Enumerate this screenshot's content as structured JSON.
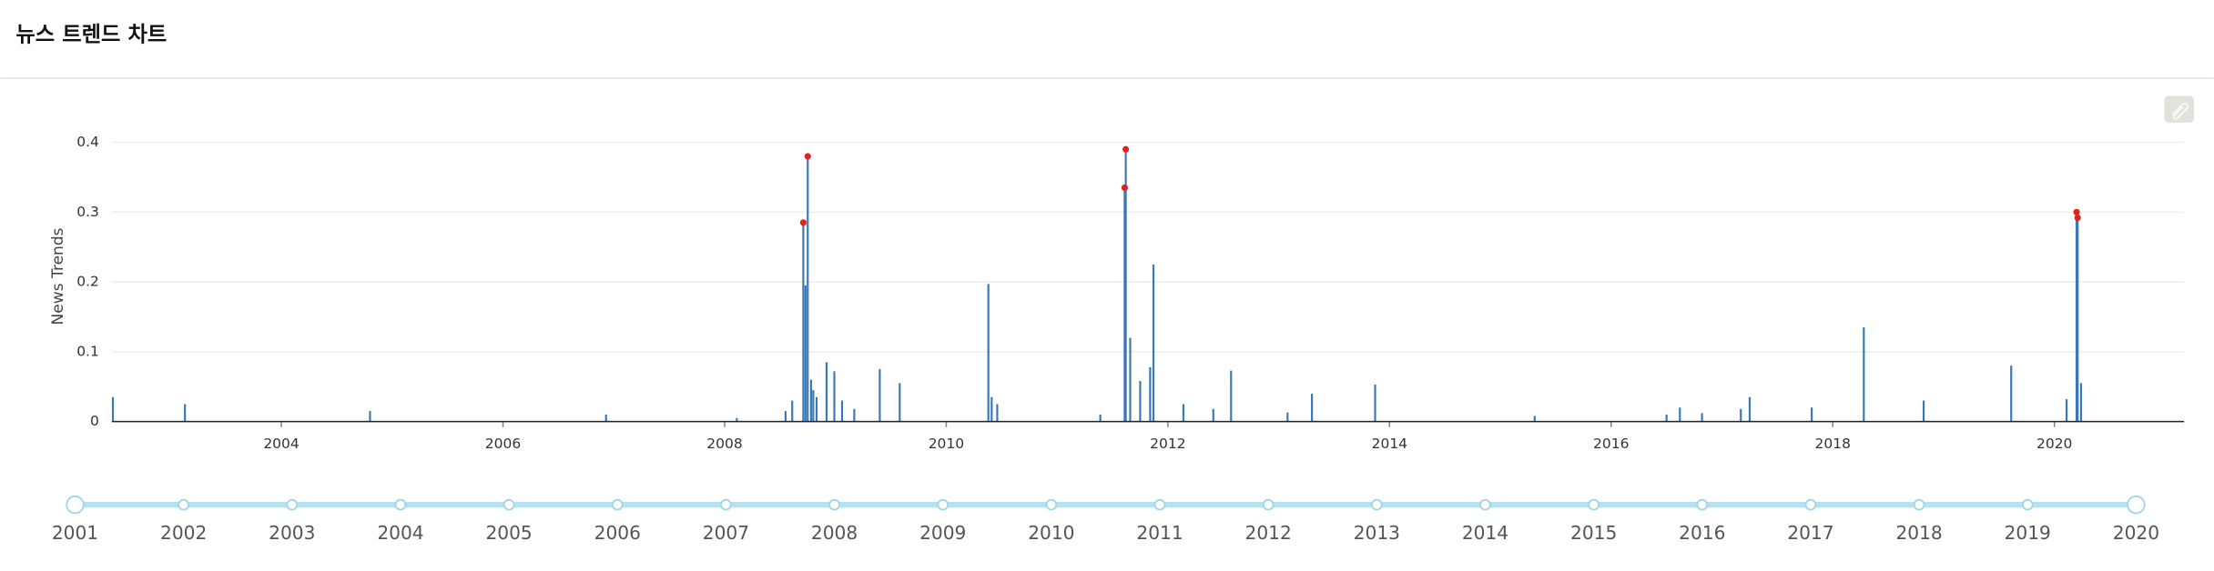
{
  "header": {
    "title": "뉴스 트렌드 차트"
  },
  "chart_data": {
    "type": "bar",
    "y_label": "News Trends",
    "color": "#3a78b5",
    "x": [
      2002.48,
      2003.13,
      2004.8,
      2006.93,
      2008.11,
      2008.55,
      2008.61,
      2008.71,
      2008.73,
      2008.75,
      2008.78,
      2008.8,
      2008.83,
      2008.92,
      2008.99,
      2009.06,
      2009.17,
      2009.4,
      2009.58,
      2010.38,
      2010.41,
      2010.46,
      2011.39,
      2011.61,
      2011.62,
      2011.66,
      2011.75,
      2011.84,
      2011.87,
      2012.14,
      2012.41,
      2012.57,
      2013.08,
      2013.3,
      2013.87,
      2015.31,
      2016.5,
      2016.62,
      2016.82,
      2017.17,
      2017.25,
      2017.81,
      2018.28,
      2018.82,
      2019.61,
      2020.11,
      2020.2,
      2020.21,
      2020.24
    ],
    "values": [
      0.035,
      0.025,
      0.015,
      0.01,
      0.005,
      0.015,
      0.03,
      0.285,
      0.195,
      0.38,
      0.06,
      0.045,
      0.035,
      0.085,
      0.072,
      0.03,
      0.018,
      0.075,
      0.055,
      0.197,
      0.035,
      0.025,
      0.01,
      0.335,
      0.39,
      0.12,
      0.058,
      0.078,
      0.225,
      0.025,
      0.018,
      0.073,
      0.013,
      0.04,
      0.053,
      0.008,
      0.01,
      0.02,
      0.012,
      0.018,
      0.035,
      0.02,
      0.135,
      0.03,
      0.08,
      0.032,
      0.3,
      0.292,
      0.055
    ],
    "peaks": {
      "color": "#e3201b",
      "x": [
        2008.71,
        2008.75,
        2011.61,
        2011.62,
        2020.2,
        2020.21
      ],
      "values": [
        0.285,
        0.38,
        0.335,
        0.39,
        0.3,
        0.292
      ]
    },
    "xlim": [
      2002.47,
      2021.17
    ],
    "xticks": [
      2004,
      2006,
      2008,
      2010,
      2012,
      2014,
      2016,
      2018,
      2020
    ],
    "ylim": [
      0,
      0.41
    ],
    "yticks": [
      0,
      0.1,
      0.2,
      0.3,
      0.4
    ],
    "grid": true
  },
  "slider": {
    "labels": [
      "2001",
      "2002",
      "2003",
      "2004",
      "2005",
      "2006",
      "2007",
      "2008",
      "2009",
      "2010",
      "2011",
      "2012",
      "2013",
      "2014",
      "2015",
      "2016",
      "2017",
      "2018",
      "2019",
      "2020"
    ]
  }
}
